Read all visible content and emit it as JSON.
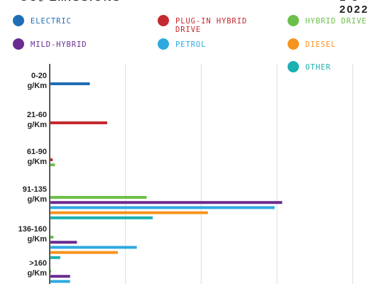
{
  "legend": [
    {
      "key": "electric",
      "label": "ELECTRIC",
      "color": "#1f6db5"
    },
    {
      "key": "plugin",
      "label": "PLUG-IN HYBRID DRIVE",
      "color": "#c4292f"
    },
    {
      "key": "hybrid",
      "label": "HYBRID DRIVE",
      "color": "#6cc04a"
    },
    {
      "key": "mild",
      "label": "MILD-HYBRID",
      "color": "#6a2c91"
    },
    {
      "key": "petrol",
      "label": "PETROL",
      "color": "#2fa9e0"
    },
    {
      "key": "diesel",
      "label": "DIESEL",
      "color": "#f7931e"
    },
    {
      "key": "other",
      "label": "OTHER",
      "color": "#1ab0b0"
    }
  ],
  "chart_data": {
    "type": "bar",
    "orientation": "horizontal",
    "categories": [
      "0-20 g/Km",
      "21-60 g/Km",
      "61-90 g/Km",
      "91-135 g/Km",
      "136-160 g/Km",
      ">160 g/Km"
    ],
    "series": [
      {
        "name": "ELECTRIC",
        "values": [
          52,
          0,
          0,
          0,
          0,
          0
        ]
      },
      {
        "name": "PLUG-IN HYBRID DRIVE",
        "values": [
          0,
          75,
          3,
          0,
          0,
          0
        ]
      },
      {
        "name": "HYBRID DRIVE",
        "values": [
          0,
          0,
          6,
          127,
          4,
          1
        ]
      },
      {
        "name": "MILD-HYBRID",
        "values": [
          0,
          0,
          0,
          306,
          35,
          26
        ]
      },
      {
        "name": "PETROL",
        "values": [
          0,
          0,
          0,
          296,
          114,
          26
        ]
      },
      {
        "name": "DIESEL",
        "values": [
          0,
          0,
          0,
          208,
          89,
          21
        ]
      },
      {
        "name": "OTHER",
        "values": [
          0,
          0,
          0,
          135,
          13,
          0
        ]
      }
    ],
    "xlim": [
      0,
      420
    ],
    "grid": true,
    "legend_position": "top"
  }
}
